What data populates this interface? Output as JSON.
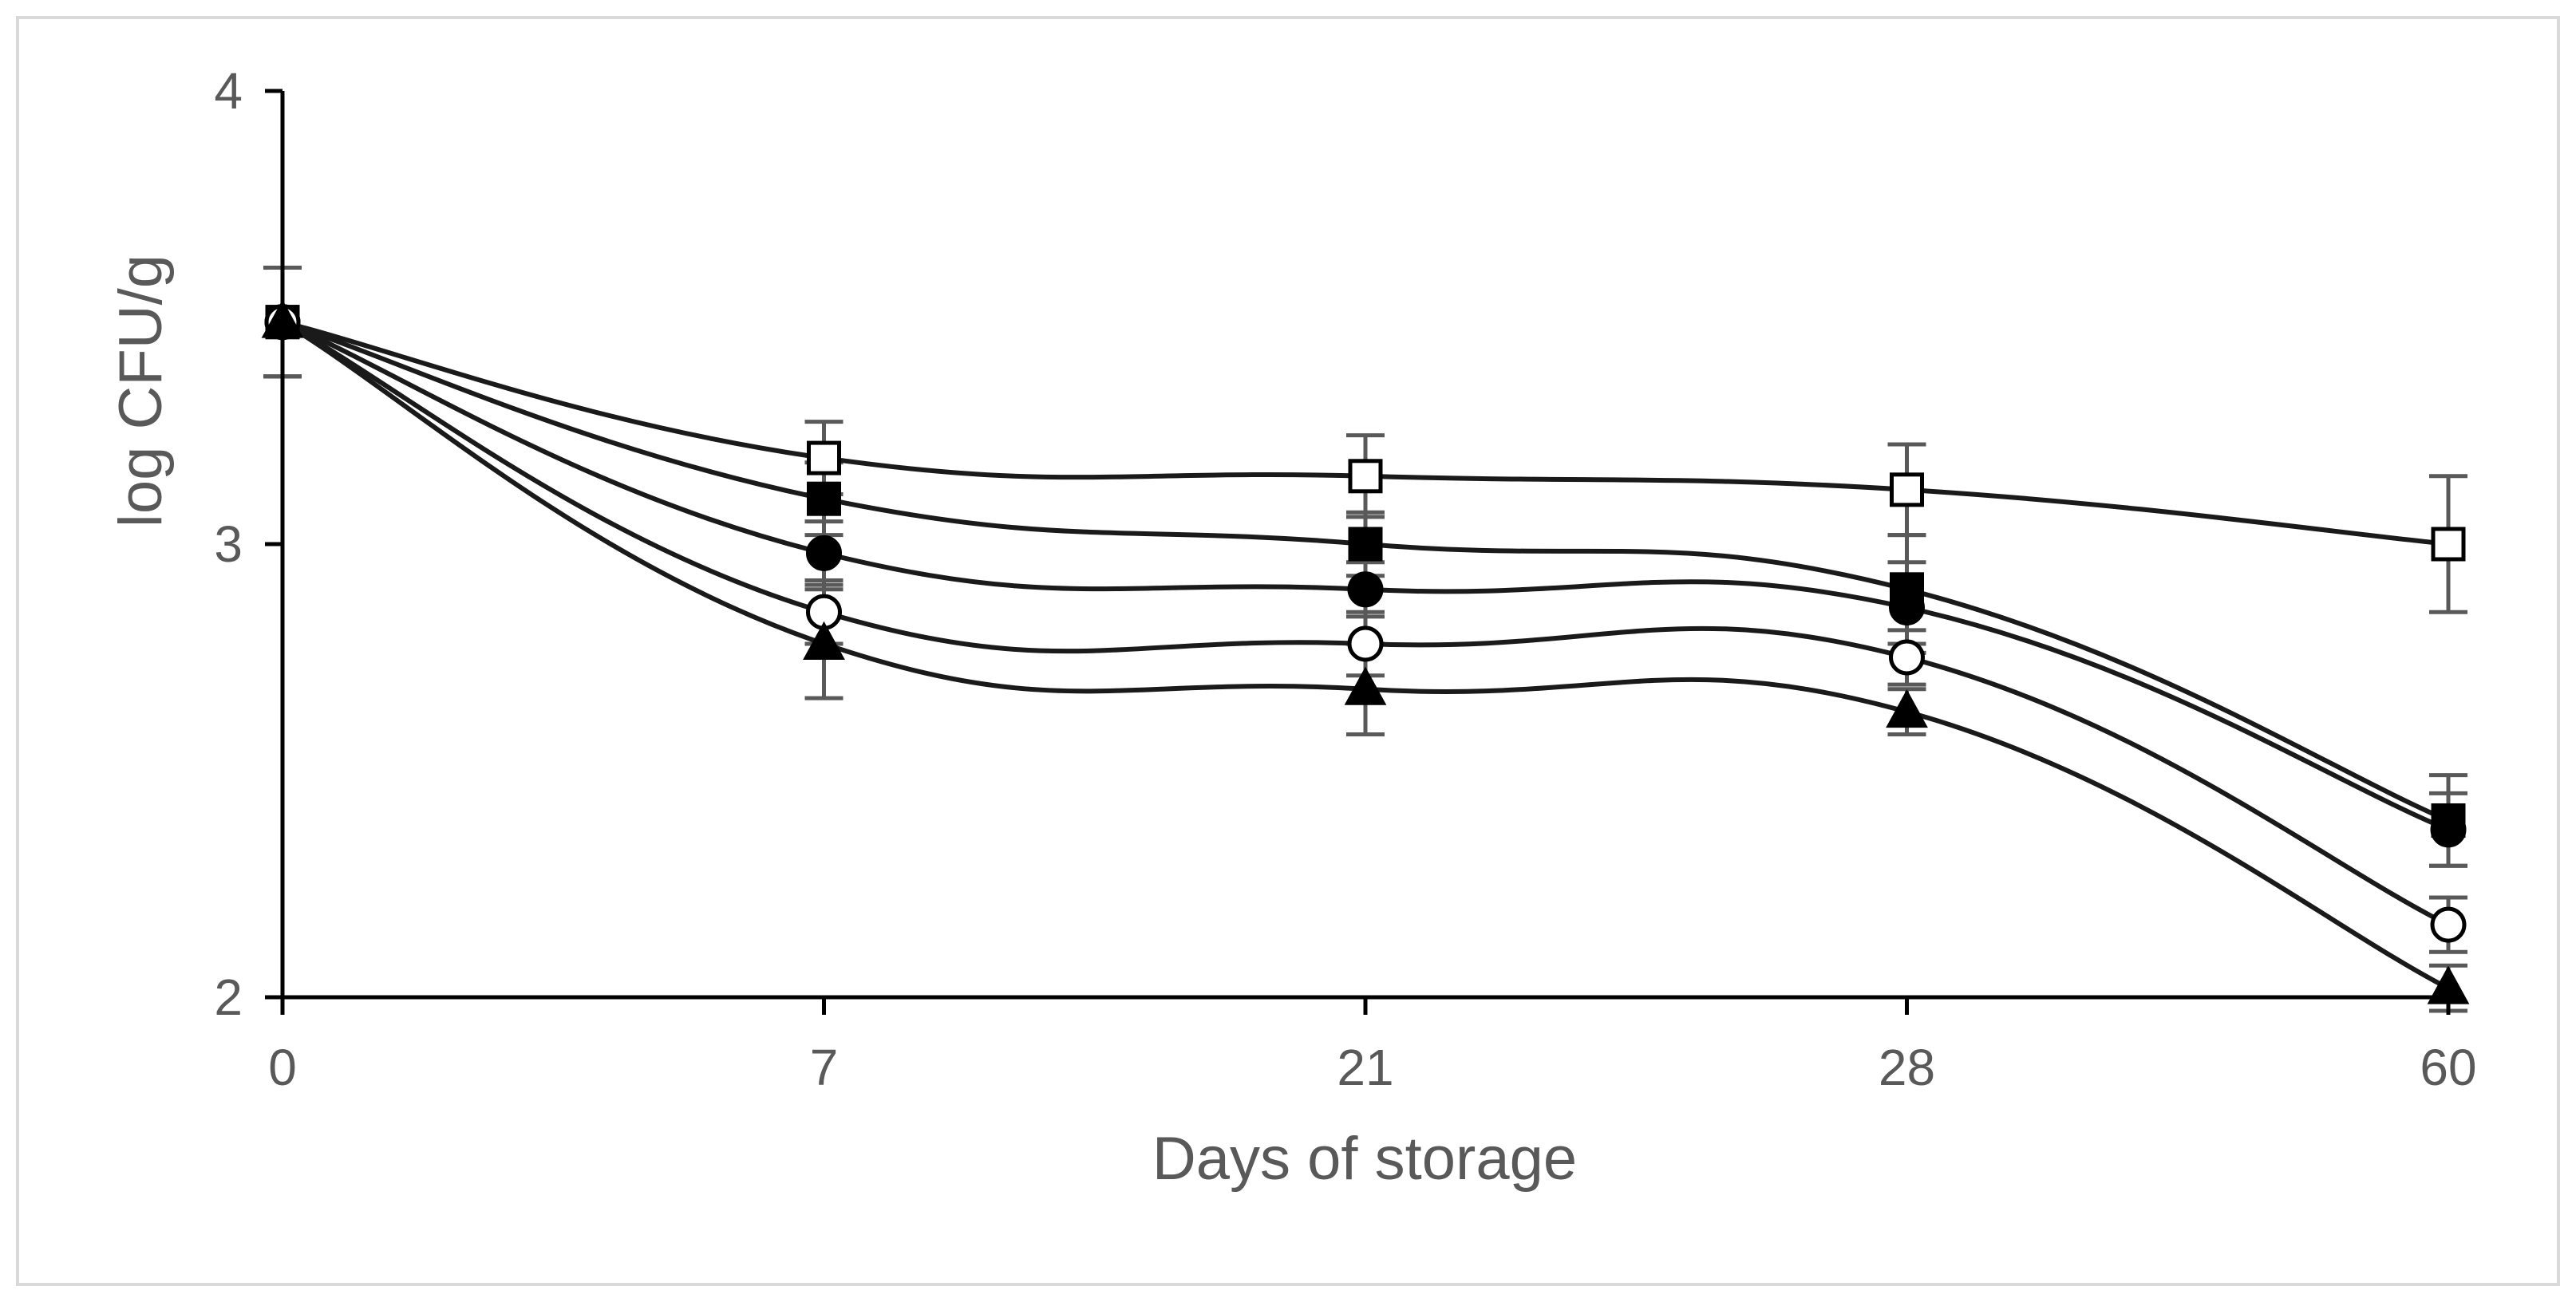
{
  "chart_data": {
    "type": "line",
    "xlabel": "Days of storage",
    "ylabel": "log CFU/g",
    "categories": [
      "0",
      "7",
      "21",
      "28",
      "60"
    ],
    "y_ticks": [
      "2",
      "3",
      "4"
    ],
    "ylim": [
      2,
      4
    ],
    "grid": false,
    "legend": "none",
    "series": [
      {
        "marker": "open-square",
        "values": [
          3.49,
          3.19,
          3.15,
          3.12,
          3.0
        ],
        "error": [
          0.12,
          0.08,
          0.09,
          0.1,
          0.15
        ]
      },
      {
        "marker": "filled-square",
        "values": [
          3.49,
          3.1,
          3.0,
          2.9,
          2.39
        ],
        "error": [
          0.12,
          0.08,
          0.07,
          0.12,
          0.1
        ]
      },
      {
        "marker": "filled-circle",
        "values": [
          3.49,
          2.98,
          2.9,
          2.86,
          2.37
        ],
        "error": [
          0.12,
          0.07,
          0.06,
          0.1,
          0.08
        ]
      },
      {
        "marker": "open-circle",
        "values": [
          3.49,
          2.85,
          2.78,
          2.75,
          2.16
        ],
        "error": [
          0.12,
          0.07,
          0.07,
          0.06,
          0.06
        ]
      },
      {
        "marker": "filled-triangle",
        "values": [
          3.49,
          2.78,
          2.68,
          2.63,
          2.02
        ],
        "error": [
          0.12,
          0.12,
          0.1,
          0.05,
          0.05
        ]
      }
    ],
    "colors": {
      "line": "#1a1a1a",
      "axis": "#000000",
      "error_bar": "#595959",
      "text": "#595959",
      "frame": "#d9d9d9"
    }
  }
}
